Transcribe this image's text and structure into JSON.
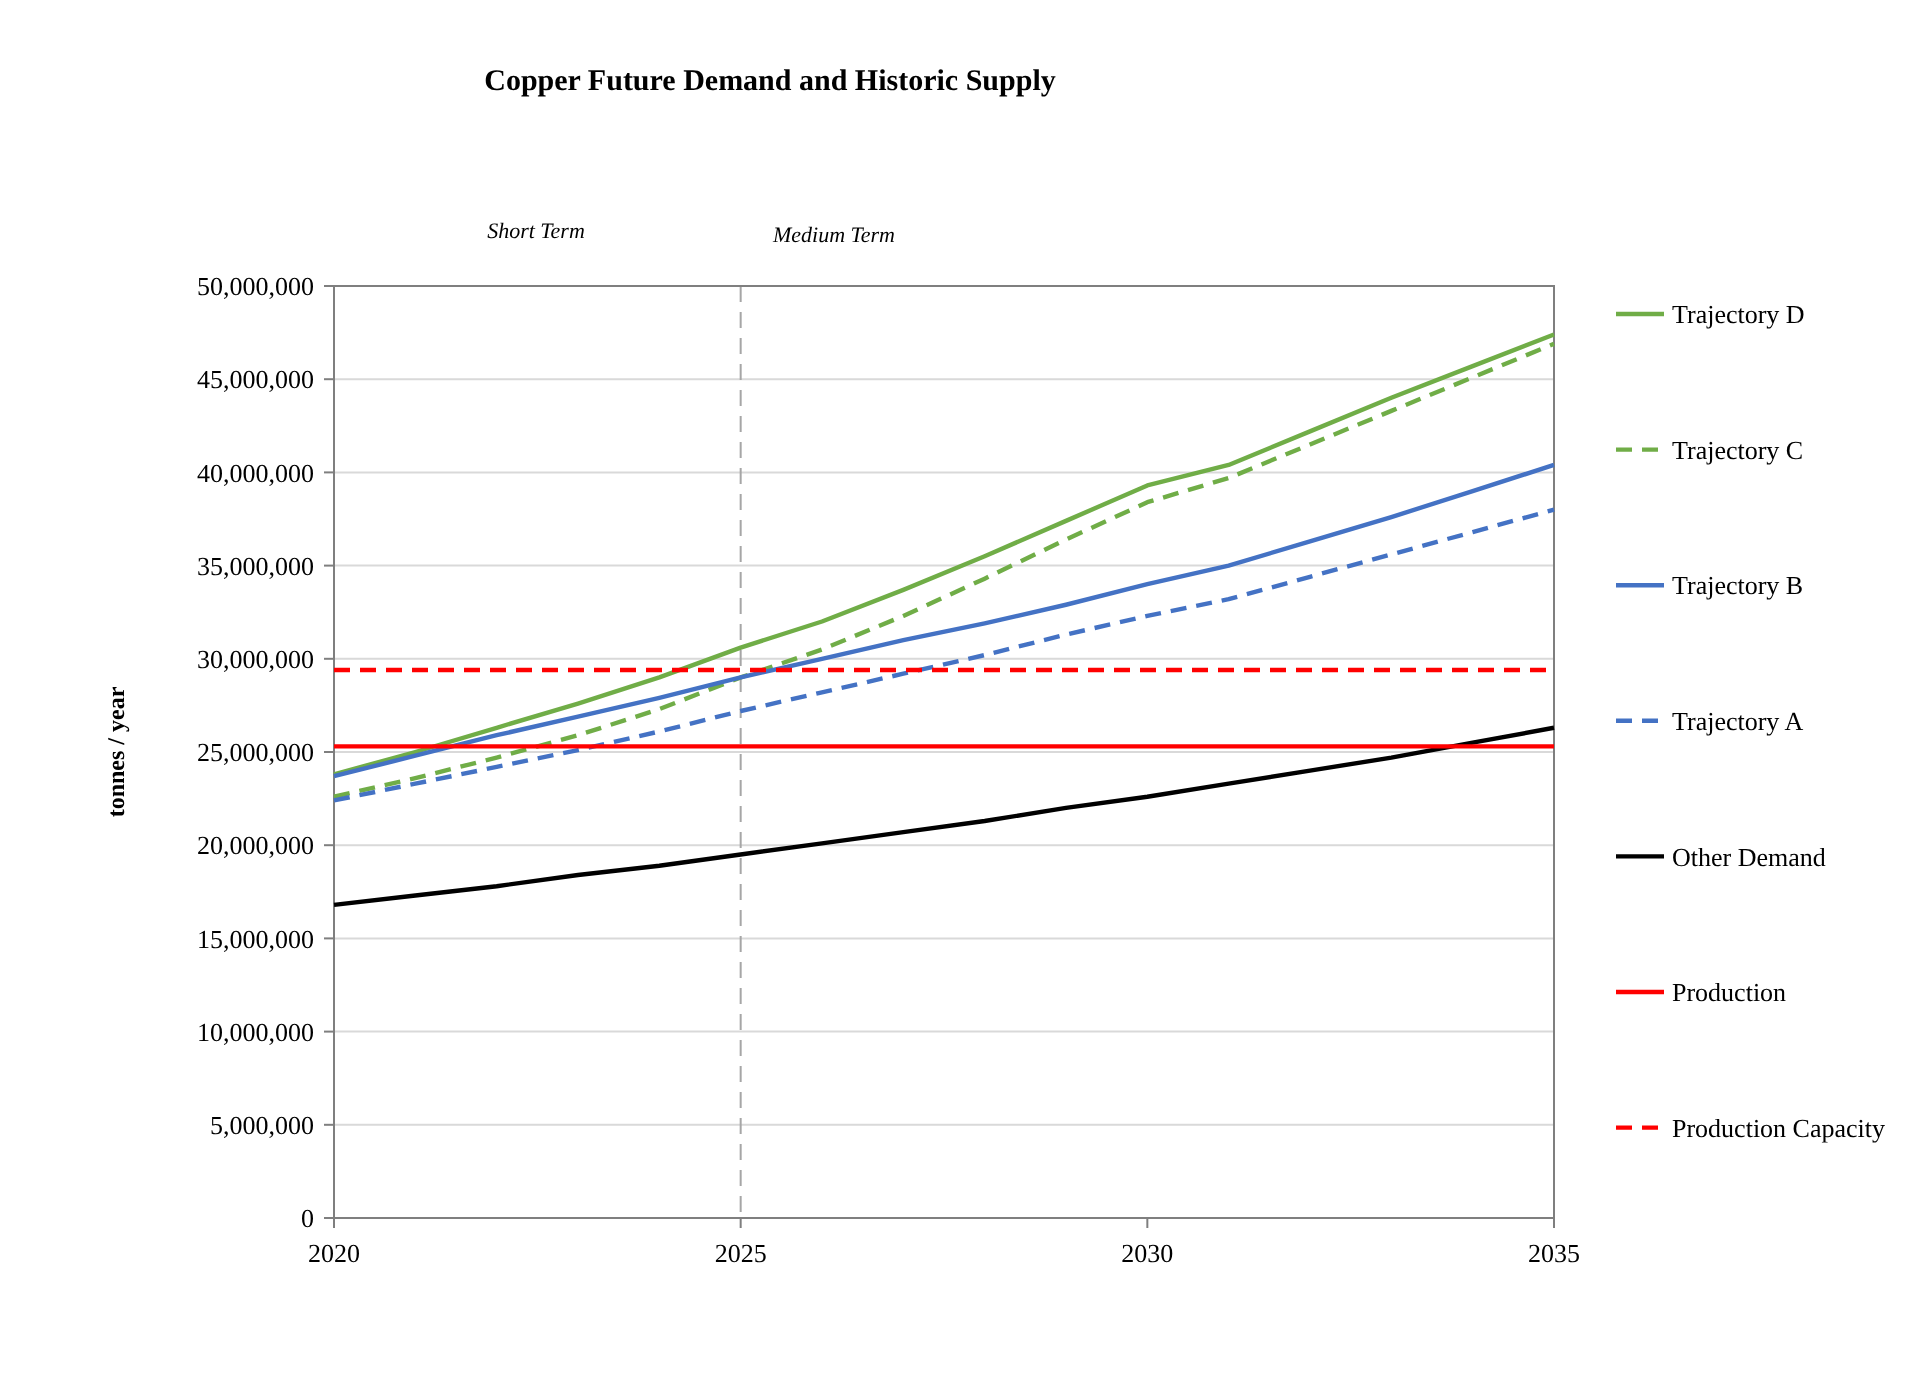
{
  "chart_data": {
    "type": "line",
    "title": "Copper Future Demand and Historic Supply",
    "ylabel": "tonnes / year",
    "x": [
      2020,
      2021,
      2022,
      2023,
      2024,
      2025,
      2026,
      2027,
      2028,
      2029,
      2030,
      2031,
      2032,
      2033,
      2034,
      2035
    ],
    "xlim": [
      2020,
      2035
    ],
    "xticks": [
      2020,
      2025,
      2030,
      2035
    ],
    "ylim": [
      0,
      50000000
    ],
    "yticks": [
      {
        "value": 0,
        "label": "0"
      },
      {
        "value": 5000000,
        "label": "5,000,000"
      },
      {
        "value": 10000000,
        "label": "10,000,000"
      },
      {
        "value": 15000000,
        "label": "15,000,000"
      },
      {
        "value": 20000000,
        "label": "20,000,000"
      },
      {
        "value": 25000000,
        "label": "25,000,000"
      },
      {
        "value": 30000000,
        "label": "30,000,000"
      },
      {
        "value": 35000000,
        "label": "35,000,000"
      },
      {
        "value": 40000000,
        "label": "40,000,000"
      },
      {
        "value": 45000000,
        "label": "45,000,000"
      },
      {
        "value": 50000000,
        "label": "50,000,000"
      }
    ],
    "grid": "y",
    "legend": "right",
    "marker": "none",
    "series": [
      {
        "name": "Trajectory D",
        "color": "#70ad47",
        "line_style": "solid",
        "values": [
          23800000,
          25000000,
          26300000,
          27600000,
          29000000,
          30600000,
          32000000,
          33700000,
          35500000,
          37400000,
          39300000,
          40400000,
          42200000,
          44000000,
          45700000,
          47400000
        ]
      },
      {
        "name": "Trajectory C",
        "color": "#70ad47",
        "line_style": "dashed",
        "values": [
          22600000,
          23600000,
          24700000,
          25900000,
          27300000,
          29000000,
          30500000,
          32300000,
          34300000,
          36400000,
          38400000,
          39700000,
          41500000,
          43300000,
          45100000,
          46900000
        ]
      },
      {
        "name": "Trajectory B",
        "color": "#4472c4",
        "line_style": "solid",
        "values": [
          23700000,
          24800000,
          25900000,
          26900000,
          27900000,
          29000000,
          30000000,
          31000000,
          31900000,
          32900000,
          34000000,
          35000000,
          36300000,
          37600000,
          39000000,
          40400000
        ]
      },
      {
        "name": "Trajectory A",
        "color": "#4472c4",
        "line_style": "dashed",
        "values": [
          22400000,
          23300000,
          24200000,
          25100000,
          26100000,
          27200000,
          28200000,
          29200000,
          30200000,
          31300000,
          32300000,
          33200000,
          34400000,
          35600000,
          36800000,
          38000000
        ]
      },
      {
        "name": "Other Demand",
        "color": "#000000",
        "line_style": "solid",
        "values": [
          16800000,
          17300000,
          17800000,
          18400000,
          18900000,
          19500000,
          20100000,
          20700000,
          21300000,
          22000000,
          22600000,
          23300000,
          24000000,
          24700000,
          25500000,
          26300000
        ]
      },
      {
        "name": "Production",
        "color": "#ff0000",
        "line_style": "solid",
        "values": [
          25300000,
          25300000,
          25300000,
          25300000,
          25300000,
          25300000,
          25300000,
          25300000,
          25300000,
          25300000,
          25300000,
          25300000,
          25300000,
          25300000,
          25300000,
          25300000
        ]
      },
      {
        "name": "Production Capacity",
        "color": "#ff0000",
        "line_style": "dashed",
        "values": [
          29400000,
          29400000,
          29400000,
          29400000,
          29400000,
          29400000,
          29400000,
          29400000,
          29400000,
          29400000,
          29400000,
          29400000,
          29400000,
          29400000,
          29400000,
          29400000
        ]
      }
    ],
    "ref_lines": [
      {
        "axis": "x",
        "value": 2025,
        "label": null,
        "color": "#a6a6a6",
        "line_style": "dashed"
      }
    ],
    "annotations": [
      "Short Term",
      "Medium Term"
    ]
  }
}
